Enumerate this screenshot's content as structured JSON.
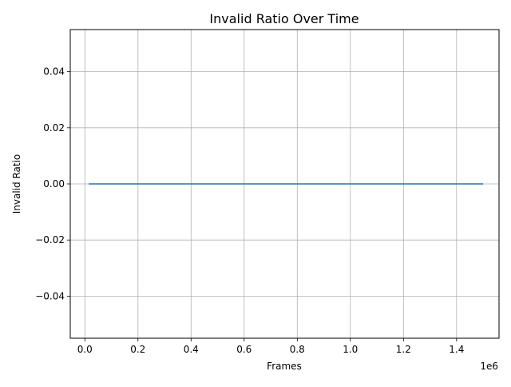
{
  "chart_data": {
    "type": "line",
    "title": "Invalid Ratio Over Time",
    "xlabel": "Frames",
    "ylabel": "Invalid Ratio",
    "x_offset_label": "1e6",
    "xlim": [
      -55000,
      1560000
    ],
    "ylim": [
      -0.055,
      0.055
    ],
    "xticks": [
      0,
      200000,
      400000,
      600000,
      800000,
      1000000,
      1200000,
      1400000
    ],
    "xtick_labels": [
      "0.0",
      "0.2",
      "0.4",
      "0.6",
      "0.8",
      "1.0",
      "1.2",
      "1.4"
    ],
    "yticks": [
      -0.04,
      -0.02,
      0.0,
      0.02,
      0.04
    ],
    "ytick_labels": [
      "−0.04",
      "−0.02",
      "0.00",
      "0.02",
      "0.04"
    ],
    "grid": true,
    "series": [
      {
        "color": "#1f77b4",
        "x": [
          15000,
          1500000
        ],
        "y": [
          0.0,
          0.0
        ]
      }
    ]
  }
}
